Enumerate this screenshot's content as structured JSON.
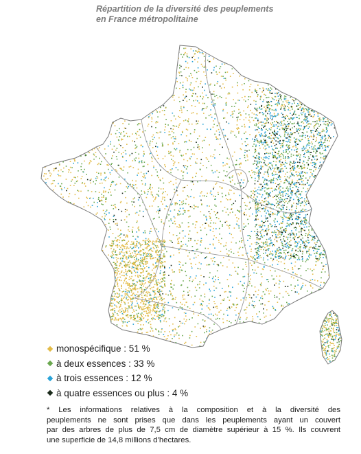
{
  "title": {
    "line1": "Répartition de la diversité des peuplements",
    "line2": "en France métropolitaine"
  },
  "map": {
    "colors": {
      "mono": "#e3bb47",
      "deux": "#6aa84f",
      "trois": "#29a3d8",
      "quatre": "#1a2a1a",
      "border": "#7a7a7a"
    }
  },
  "legend": {
    "items": [
      {
        "label": "monospécifique : 51 %",
        "color": "#e3bb47",
        "icon": "diamond-bullet"
      },
      {
        "label": "à deux essences : 33 %",
        "color": "#6aa84f",
        "icon": "diamond-bullet"
      },
      {
        "label": "à trois essences : 12 %",
        "color": "#29a3d8",
        "icon": "diamond-bullet"
      },
      {
        "label": "à quatre essences ou plus : 4 %",
        "color": "#1a2a1a",
        "icon": "diamond-bullet"
      }
    ]
  },
  "note": {
    "lines": [
      "* Les informations relatives à la composition et à la diversité des",
      "peuplements ne sont prises que dans les peuplements ayant un couvert",
      "par des arbres de plus de 7,5 cm de diamètre supérieur à 15 %. Ils couvrent",
      "une superficie de 14,8 millions d’hectares."
    ]
  }
}
